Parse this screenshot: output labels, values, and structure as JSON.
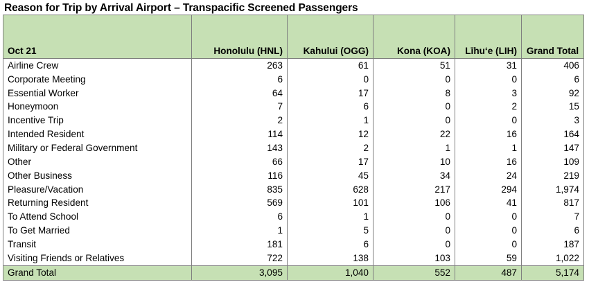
{
  "title": "Reason for Trip by Arrival Airport – Transpacific Screened Passengers",
  "table": {
    "columns": [
      "Oct 21",
      "Honolulu (HNL)",
      "Kahului (OGG)",
      "Kona (KOA)",
      "Līhu‘e (LIH)",
      "Grand Total"
    ],
    "rows": [
      [
        "Airline Crew",
        "263",
        "61",
        "51",
        "31",
        "406"
      ],
      [
        "Corporate Meeting",
        "6",
        "0",
        "0",
        "0",
        "6"
      ],
      [
        "Essential Worker",
        "64",
        "17",
        "8",
        "3",
        "92"
      ],
      [
        "Honeymoon",
        "7",
        "6",
        "0",
        "2",
        "15"
      ],
      [
        "Incentive Trip",
        "2",
        "1",
        "0",
        "0",
        "3"
      ],
      [
        "Intended Resident",
        "114",
        "12",
        "22",
        "16",
        "164"
      ],
      [
        "Military or Federal Government",
        "143",
        "2",
        "1",
        "1",
        "147"
      ],
      [
        "Other",
        "66",
        "17",
        "10",
        "16",
        "109"
      ],
      [
        "Other Business",
        "116",
        "45",
        "34",
        "24",
        "219"
      ],
      [
        "Pleasure/Vacation",
        "835",
        "628",
        "217",
        "294",
        "1,974"
      ],
      [
        "Returning Resident",
        "569",
        "101",
        "106",
        "41",
        "817"
      ],
      [
        "To Attend School",
        "6",
        "1",
        "0",
        "0",
        "7"
      ],
      [
        "To Get Married",
        "1",
        "5",
        "0",
        "0",
        "6"
      ],
      [
        "Transit",
        "181",
        "6",
        "0",
        "0",
        "187"
      ],
      [
        "Visiting Friends or Relatives",
        "722",
        "138",
        "103",
        "59",
        "1,022"
      ]
    ],
    "total": [
      "Grand Total",
      "3,095",
      "1,040",
      "552",
      "487",
      "5,174"
    ]
  },
  "colors": {
    "header_fill": "#c6e0b4",
    "border": "#7f7f7f"
  }
}
